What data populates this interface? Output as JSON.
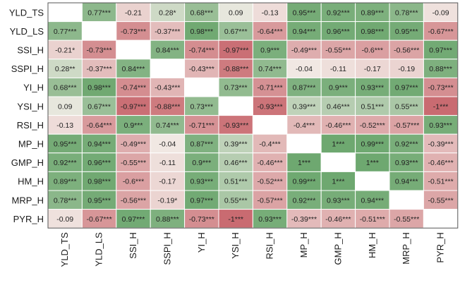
{
  "chart_data": {
    "type": "heatmap",
    "rows": [
      "YLD_TS",
      "YLD_LS",
      "SSI_H",
      "SSPI_H",
      "YI_H",
      "YSI_H",
      "RSI_H",
      "MP_H",
      "GMP_H",
      "HM_H",
      "MRP_H",
      "PYR_H"
    ],
    "columns": [
      "YLD_TS",
      "YLD_LS",
      "SSI_H",
      "SSPI_H",
      "YI_H",
      "YSI_H",
      "RSI_H",
      "MP_H",
      "GMP_H",
      "HM_H",
      "MRP_H",
      "PYR_H"
    ],
    "values": [
      [
        null,
        0.77,
        -0.21,
        0.28,
        0.68,
        0.09,
        -0.13,
        0.95,
        0.92,
        0.89,
        0.78,
        -0.09
      ],
      [
        0.77,
        null,
        -0.73,
        -0.37,
        0.98,
        0.67,
        -0.64,
        0.94,
        0.96,
        0.98,
        0.95,
        -0.67
      ],
      [
        -0.21,
        -0.73,
        null,
        0.84,
        -0.74,
        -0.97,
        0.9,
        -0.49,
        -0.55,
        -0.6,
        -0.56,
        0.97
      ],
      [
        0.28,
        -0.37,
        0.84,
        null,
        -0.43,
        -0.88,
        0.74,
        -0.04,
        -0.11,
        -0.17,
        -0.19,
        0.88
      ],
      [
        0.68,
        0.98,
        -0.74,
        -0.43,
        null,
        0.73,
        -0.71,
        0.87,
        0.9,
        0.93,
        0.97,
        -0.73
      ],
      [
        0.09,
        0.67,
        -0.97,
        -0.88,
        0.73,
        null,
        -0.93,
        0.39,
        0.46,
        0.51,
        0.55,
        -1
      ],
      [
        -0.13,
        -0.64,
        0.9,
        0.74,
        -0.71,
        -0.93,
        null,
        -0.4,
        -0.46,
        -0.52,
        -0.57,
        0.93
      ],
      [
        0.95,
        0.94,
        -0.49,
        -0.04,
        0.87,
        0.39,
        -0.4,
        null,
        1,
        0.99,
        0.92,
        -0.39
      ],
      [
        0.92,
        0.96,
        -0.55,
        -0.11,
        0.9,
        0.46,
        -0.46,
        1,
        null,
        1,
        0.93,
        -0.46
      ],
      [
        0.89,
        0.98,
        -0.6,
        -0.17,
        0.93,
        0.51,
        -0.52,
        0.99,
        1,
        null,
        0.94,
        -0.51
      ],
      [
        0.78,
        0.95,
        -0.56,
        -0.19,
        0.97,
        0.55,
        -0.57,
        0.92,
        0.93,
        0.94,
        null,
        -0.55
      ],
      [
        -0.09,
        -0.67,
        0.97,
        0.88,
        -0.73,
        -1,
        0.93,
        -0.39,
        -0.46,
        -0.51,
        -0.55,
        null
      ]
    ],
    "labels": [
      [
        "",
        "0.77***",
        "-0.21",
        "0.28*",
        "0.68***",
        "0.09",
        "-0.13",
        "0.95***",
        "0.92***",
        "0.89***",
        "0.78***",
        "-0.09"
      ],
      [
        "0.77***",
        "",
        "-0.73***",
        "-0.37***",
        "0.98***",
        "0.67***",
        "-0.64***",
        "0.94***",
        "0.96***",
        "0.98***",
        "0.95***",
        "-0.67***"
      ],
      [
        "-0.21*",
        "-0.73***",
        "",
        "0.84***",
        "-0.74***",
        "-0.97***",
        "0.9***",
        "-0.49***",
        "-0.55***",
        "-0.6***",
        "-0.56***",
        "0.97***"
      ],
      [
        "0.28**",
        "-0.37***",
        "0.84***",
        "",
        "-0.43***",
        "-0.88***",
        "0.74***",
        "-0.04",
        "-0.11",
        "-0.17",
        "-0.19",
        "0.88***"
      ],
      [
        "0.68***",
        "0.98***",
        "-0.74***",
        "-0.43***",
        "",
        "0.73***",
        "-0.71***",
        "0.87***",
        "0.9***",
        "0.93***",
        "0.97***",
        "-0.73***"
      ],
      [
        "0.09",
        "0.67***",
        "-0.97***",
        "-0.88***",
        "0.73***",
        "",
        "-0.93***",
        "0.39***",
        "0.46***",
        "0.51***",
        "0.55***",
        "-1***"
      ],
      [
        "-0.13",
        "-0.64***",
        "0.9***",
        "0.74***",
        "-0.71***",
        "-0.93***",
        "",
        "-0.4***",
        "-0.46***",
        "-0.52***",
        "-0.57***",
        "0.93***"
      ],
      [
        "0.95***",
        "0.94***",
        "-0.49***",
        "-0.04",
        "0.87***",
        "0.39***",
        "-0.4***",
        "",
        "1***",
        "0.99***",
        "0.92***",
        "-0.39***"
      ],
      [
        "0.92***",
        "0.96***",
        "-0.55***",
        "-0.11",
        "0.9***",
        "0.46***",
        "-0.46***",
        "1***",
        "",
        "1***",
        "0.93***",
        "-0.46***"
      ],
      [
        "0.89***",
        "0.98***",
        "-0.6***",
        "-0.17",
        "0.93***",
        "0.51***",
        "-0.52***",
        "0.99***",
        "1***",
        "",
        "0.94***",
        "-0.51***"
      ],
      [
        "0.78***",
        "0.95***",
        "-0.56***",
        "-0.19*",
        "0.97***",
        "0.55***",
        "-0.57***",
        "0.92***",
        "0.93***",
        "0.94***",
        "",
        "-0.55***"
      ],
      [
        "-0.09",
        "-0.67***",
        "0.97***",
        "0.88***",
        "-0.73***",
        "-1***",
        "0.93***",
        "-0.39***",
        "-0.46***",
        "-0.51***",
        "-0.55***",
        ""
      ]
    ],
    "color_scale": {
      "negative": "#c96b71",
      "neutral": "#f3ede8",
      "positive": "#6ea870",
      "diagonal": "#ffffff",
      "grid": "#ffffff",
      "border": "#555555"
    },
    "value_range": [
      -1,
      1
    ]
  }
}
